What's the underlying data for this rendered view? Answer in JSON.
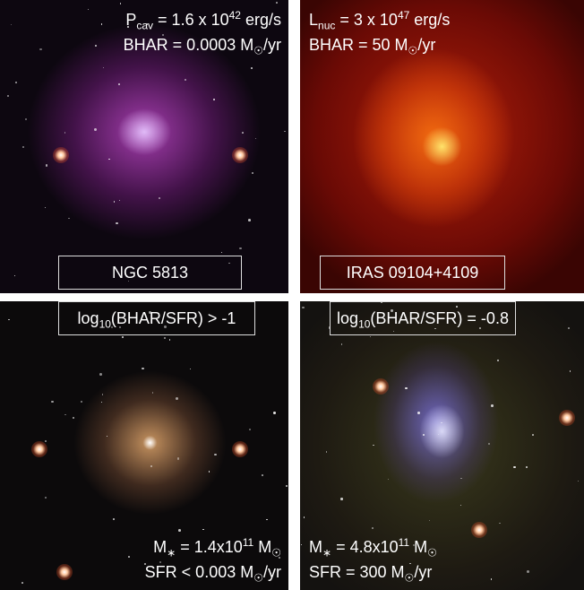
{
  "panels": [
    {
      "box": [
        "NGC 5813"
      ],
      "lines": [
        [
          "P",
          {
            "sub": "cav"
          },
          " = 1.6 x 10",
          {
            "sup": "42"
          },
          " erg/s"
        ],
        [
          "BHAR = 0.0003 M",
          {
            "sub": "☉"
          },
          "/yr"
        ]
      ]
    },
    {
      "box": [
        "IRAS 09104+4109"
      ],
      "lines": [
        [
          "L",
          {
            "sub": "nuc"
          },
          " = 3 x 10",
          {
            "sup": "47"
          },
          " erg/s"
        ],
        [
          "BHAR = 50 M",
          {
            "sub": "☉"
          },
          "/yr"
        ]
      ]
    },
    {
      "box": [
        "log",
        {
          "sub": "10"
        },
        "(BHAR/SFR) > -1"
      ],
      "lines": [
        [
          "M",
          {
            "sub": "∗"
          },
          " = 1.4x10",
          {
            "sup": "11"
          },
          " M",
          {
            "sub": "☉"
          }
        ],
        [
          "SFR < 0.003 M",
          {
            "sub": "☉"
          },
          "/yr"
        ]
      ]
    },
    {
      "box": [
        "log",
        {
          "sub": "10"
        },
        "(BHAR/SFR) = -0.8"
      ],
      "lines": [
        [
          "M",
          {
            "sub": "∗"
          },
          " = 4.8x10",
          {
            "sup": "11"
          },
          " M",
          {
            "sub": "☉"
          }
        ],
        [
          "SFR = 300 M",
          {
            "sub": "☉"
          },
          "/yr"
        ]
      ]
    }
  ]
}
